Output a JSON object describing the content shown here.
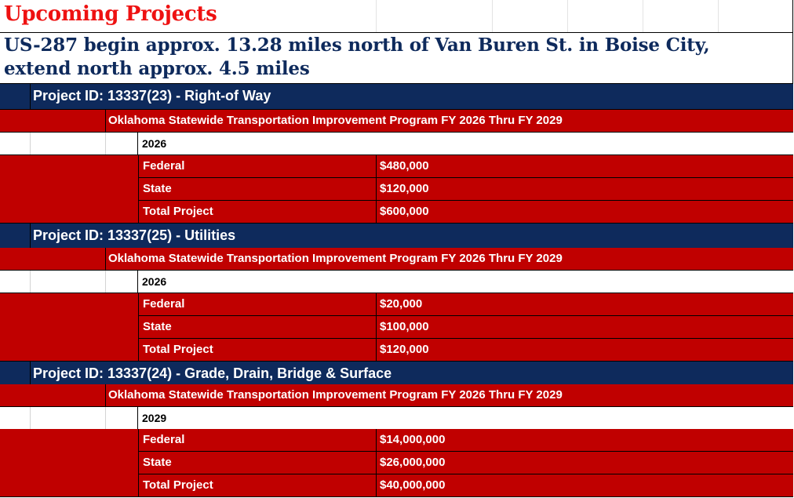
{
  "title": "Upcoming Projects",
  "location": "US-287 begin approx. 13.28 miles north of Van Buren St. in Boise City, extend north approx. 4.5 miles",
  "program_label": "Oklahoma Statewide Transportation Improvement Program FY 2026 Thru FY 2029",
  "projects": [
    {
      "header": "Project ID: 13337(23) - Right-of Way",
      "year": "2026",
      "funding": [
        {
          "label": "Federal",
          "amount": "$480,000"
        },
        {
          "label": "State",
          "amount": "$120,000"
        },
        {
          "label": "Total Project",
          "amount": "$600,000"
        }
      ]
    },
    {
      "header": "Project ID: 13337(25) - Utilities",
      "year": "2026",
      "funding": [
        {
          "label": "Federal",
          "amount": "$20,000"
        },
        {
          "label": "State",
          "amount": "$100,000"
        },
        {
          "label": "Total Project",
          "amount": "$120,000"
        }
      ]
    },
    {
      "header": "Project ID: 13337(24) - Grade, Drain, Bridge & Surface",
      "year": "2029",
      "funding": [
        {
          "label": "Federal",
          "amount": "$14,000,000"
        },
        {
          "label": "State",
          "amount": "$26,000,000"
        },
        {
          "label": "Total Project",
          "amount": "$40,000,000"
        }
      ]
    }
  ],
  "colors": {
    "title_red": "#ee1111",
    "navy": "#0e2a5c",
    "band_red": "#c00000"
  }
}
